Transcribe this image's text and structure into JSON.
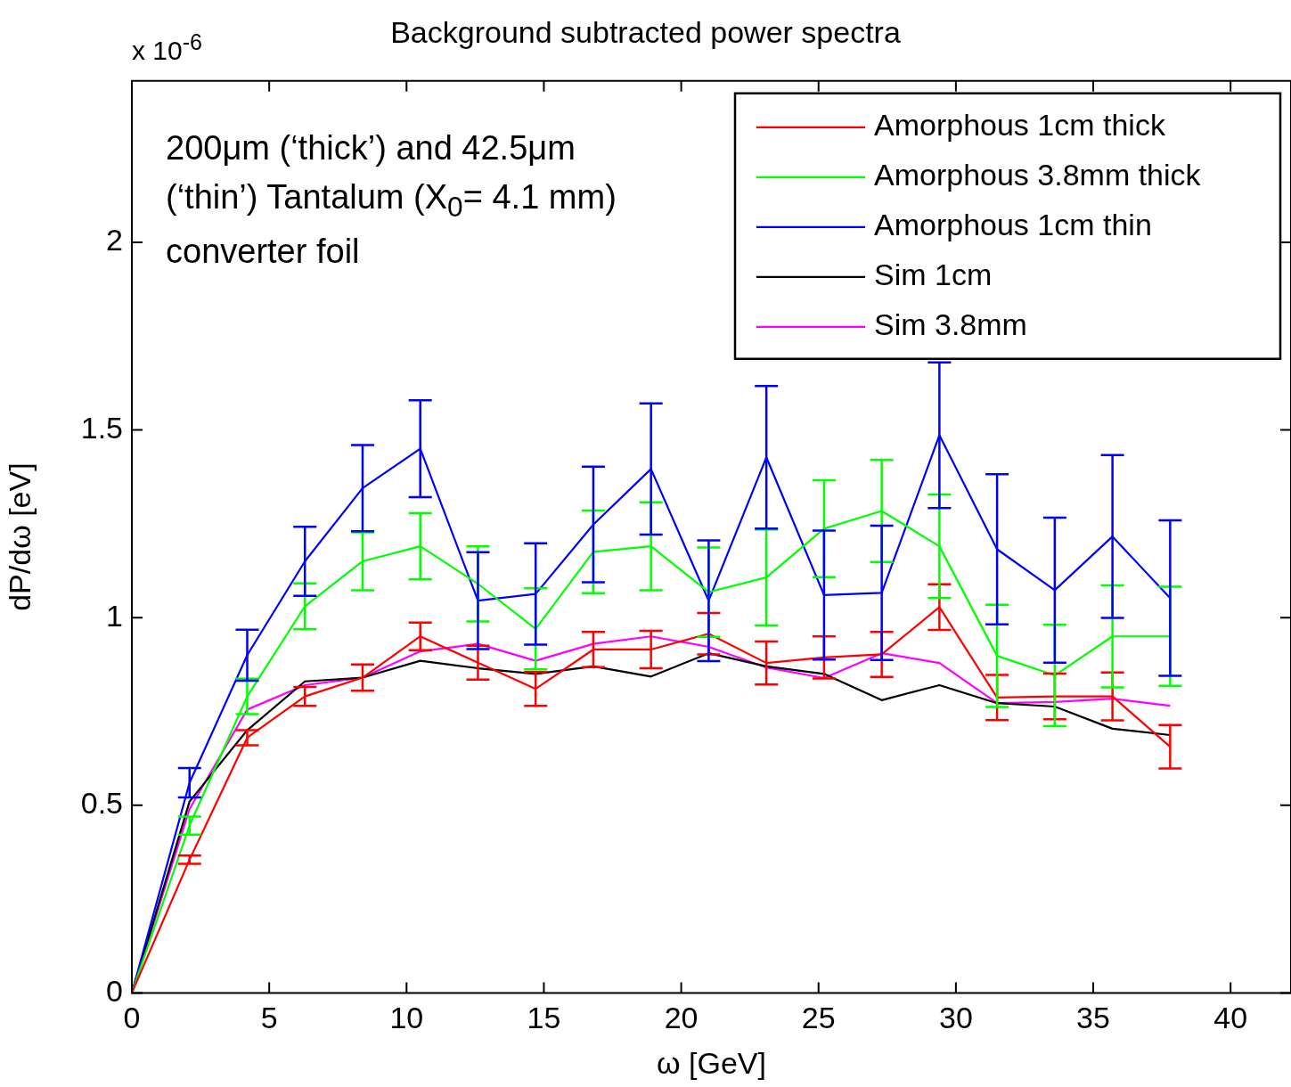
{
  "chart_data": {
    "type": "line",
    "title": "Background subtracted power spectra",
    "xlabel": "ω [GeV]",
    "ylabel": "dP/dω [eV]",
    "annotations": [
      "x 10$^{-6}$",
      "200μm (‘thick’) and 42.5μm (‘thin’) Tantalum (X$_{0}$= 4.1 mm) converter foil"
    ],
    "x": [
      0,
      2.1,
      4.2,
      6.3,
      8.4,
      10.5,
      12.6,
      14.7,
      16.8,
      18.9,
      21,
      23.1,
      25.2,
      27.3,
      29.4,
      31.5,
      33.6,
      35.7,
      37.8
    ],
    "xlim": [
      0,
      42.2
    ],
    "xticks": [
      0,
      5,
      10,
      15,
      20,
      25,
      30,
      35,
      40
    ],
    "ylim": [
      0,
      2.43
    ],
    "yticks": [
      0,
      0.5,
      1,
      1.5,
      2
    ],
    "grid": false,
    "legend": "top right",
    "marker": "none",
    "line_style": "solid",
    "series": [
      {
        "name": "Amorphous 1cm thick",
        "color": "#ff0000",
        "values": [
          0,
          0.355,
          0.68,
          0.79,
          0.84,
          0.95,
          0.88,
          0.81,
          0.915,
          0.915,
          0.957,
          0.879,
          0.894,
          0.902,
          1.028,
          0.787,
          0.79,
          0.79,
          0.656
        ],
        "errors": [
          null,
          0.011,
          0.02,
          0.025,
          0.035,
          0.037,
          0.045,
          0.045,
          0.047,
          0.05,
          0.055,
          0.057,
          0.056,
          0.06,
          0.061,
          0.06,
          0.061,
          0.064,
          0.058
        ]
      },
      {
        "name": "Amorphous 3.8mm thick",
        "color": "#00ff00",
        "values": [
          0,
          0.446,
          0.79,
          1.03,
          1.15,
          1.19,
          1.09,
          0.97,
          1.175,
          1.19,
          1.068,
          1.107,
          1.237,
          1.284,
          1.19,
          0.898,
          0.846,
          0.95,
          0.95
        ],
        "errors": [
          null,
          0.024,
          0.047,
          0.061,
          0.077,
          0.088,
          0.1,
          0.108,
          0.11,
          0.117,
          0.119,
          0.128,
          0.129,
          0.136,
          0.138,
          0.136,
          0.135,
          0.136,
          0.132
        ]
      },
      {
        "name": "Amorphous 1cm thin",
        "color": "#0000ff",
        "values": [
          0,
          0.56,
          0.9,
          1.15,
          1.345,
          1.45,
          1.045,
          1.063,
          1.248,
          1.396,
          1.045,
          1.427,
          1.06,
          1.066,
          1.486,
          1.182,
          1.073,
          1.216,
          1.052
        ],
        "errors": [
          null,
          0.039,
          0.068,
          0.092,
          0.115,
          0.129,
          0.129,
          0.135,
          0.154,
          0.175,
          0.161,
          0.19,
          0.172,
          0.179,
          0.194,
          0.2,
          0.193,
          0.217,
          0.207
        ]
      },
      {
        "name": "Sim 1cm",
        "color": "#000000",
        "values": [
          0,
          0.51,
          0.7,
          0.83,
          0.84,
          0.885,
          0.865,
          0.85,
          0.87,
          0.843,
          0.905,
          0.87,
          0.85,
          0.78,
          0.82,
          0.772,
          0.763,
          0.704,
          0.687
        ]
      },
      {
        "name": "Sim 3.8mm",
        "color": "#ff00ff",
        "values": [
          0,
          0.49,
          0.755,
          0.82,
          0.84,
          0.91,
          0.93,
          0.885,
          0.93,
          0.95,
          0.922,
          0.867,
          0.839,
          0.905,
          0.879,
          0.772,
          0.775,
          0.784,
          0.765
        ]
      }
    ]
  }
}
